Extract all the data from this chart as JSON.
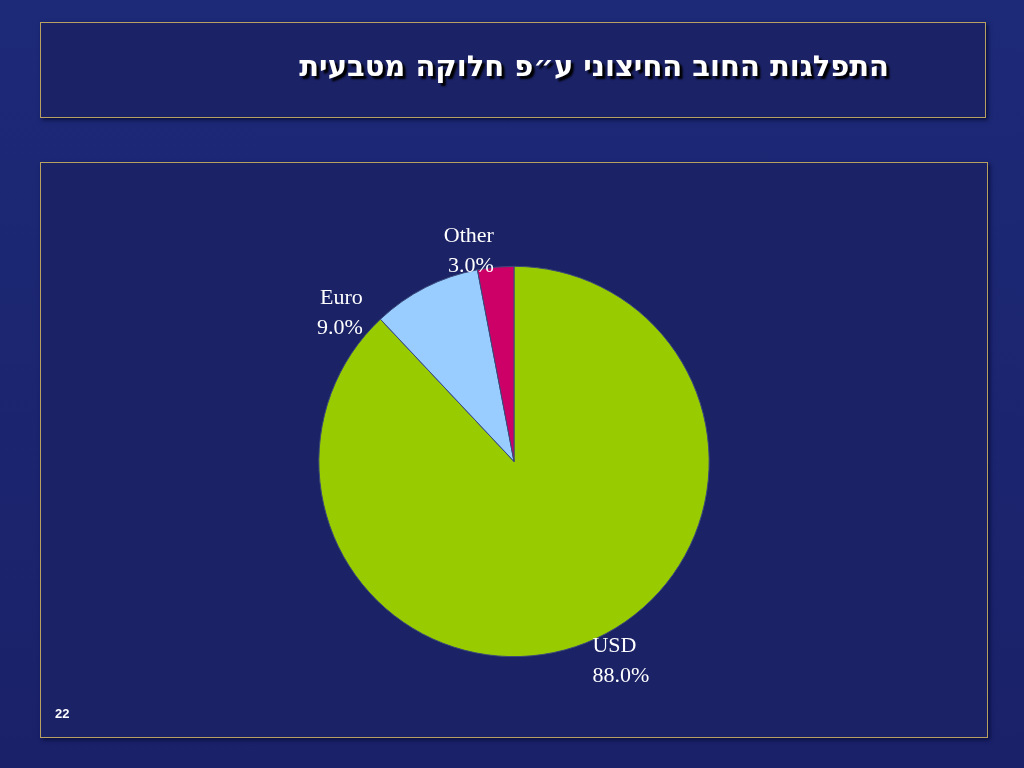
{
  "chart_data": {
    "type": "pie",
    "title": "התפלגות החוב החיצוני ע״פ חלוקה מטבעית",
    "categories": [
      "USD",
      "Euro",
      "Other"
    ],
    "values": [
      88,
      9,
      3
    ],
    "colors": [
      "#99cc00",
      "#99ccff",
      "#cc0066"
    ],
    "value_labels": [
      "88.0%",
      "9.0%",
      "3.0%"
    ],
    "annotations": [
      "22"
    ]
  }
}
